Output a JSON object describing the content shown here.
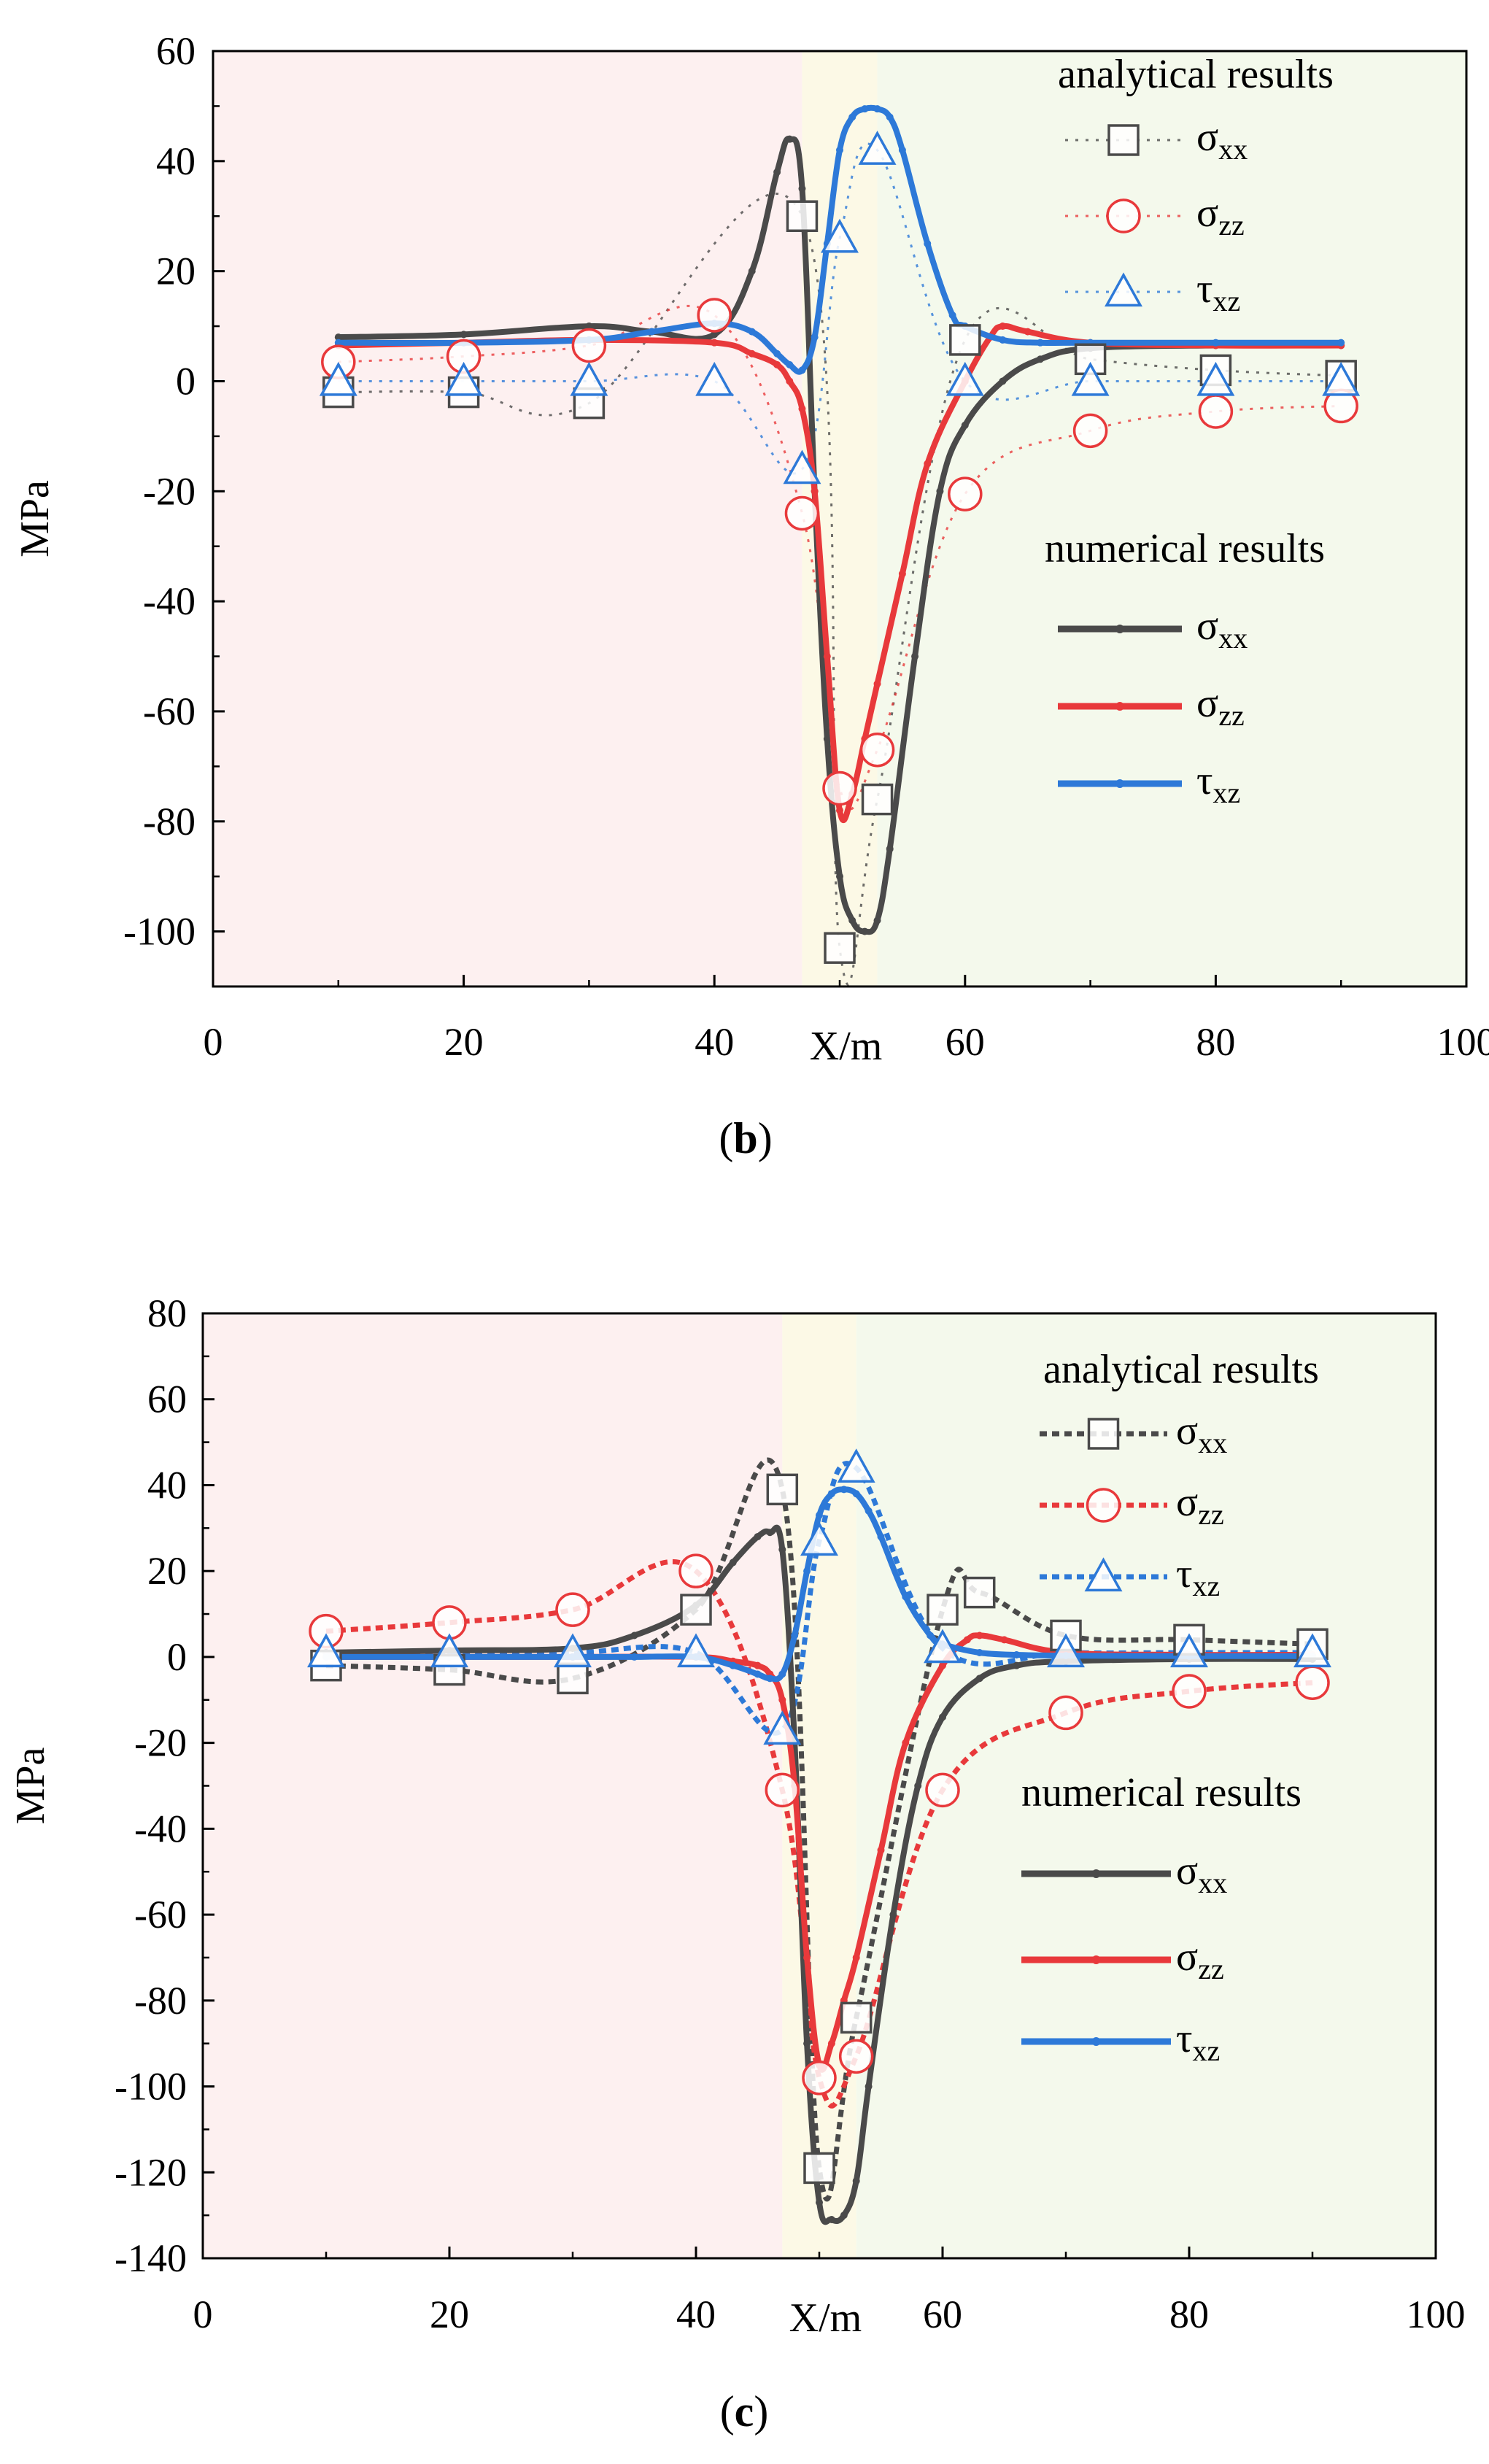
{
  "colors": {
    "sxx": "#4a4a4a",
    "szz": "#e8393b",
    "txz": "#2d79d8",
    "zone_left": "#fdf0f0",
    "zone_mid": "#fcf9e6",
    "zone_right": "#f4f9ec"
  },
  "chart_data": [
    {
      "type": "line",
      "panel_label": "(b)",
      "panel_letter": "b",
      "xlabel": "X/m",
      "ylabel": "MPa",
      "xlim": [
        0,
        100
      ],
      "ylim": [
        -110,
        60
      ],
      "xticks": [
        0,
        20,
        40,
        60,
        80,
        100
      ],
      "xtick_labels": [
        "0",
        "20",
        "40",
        "60",
        "80",
        "100"
      ],
      "yticks": [
        60,
        40,
        20,
        0,
        -20,
        -40,
        -60,
        -80,
        -100
      ],
      "ytick_labels": [
        "60",
        "40",
        "20",
        "0",
        "-20",
        "-40",
        "-60",
        "-80",
        "-100"
      ],
      "zones": [
        {
          "from": 0,
          "to": 47,
          "color_key": "zone_left"
        },
        {
          "from": 47,
          "to": 53,
          "color_key": "zone_mid"
        },
        {
          "from": 53,
          "to": 100,
          "color_key": "zone_right"
        }
      ],
      "legend": {
        "analytical_title": "analytical results",
        "numerical_title": "numerical results",
        "placement": "right"
      },
      "analytical": [
        {
          "name": "σxx",
          "base": "σ",
          "sub": "xx",
          "marker": "square",
          "color_key": "sxx",
          "x": [
            10,
            20,
            30,
            47,
            50,
            53,
            60,
            70,
            80,
            90
          ],
          "y": [
            -2,
            -2,
            -4,
            30,
            -103,
            -76,
            7.5,
            4,
            2,
            1
          ]
        },
        {
          "name": "σzz",
          "base": "σ",
          "sub": "zz",
          "marker": "circle",
          "color_key": "szz",
          "x": [
            10,
            20,
            30,
            40,
            47,
            50,
            53,
            60,
            70,
            80,
            90
          ],
          "y": [
            3.5,
            4.5,
            6.5,
            12,
            -24,
            -74,
            -67,
            -20.5,
            -9,
            -5.5,
            -4.5
          ]
        },
        {
          "name": "τxz",
          "base": "τ",
          "sub": "xz",
          "marker": "triangle",
          "color_key": "txz",
          "x": [
            10,
            20,
            30,
            40,
            47,
            50,
            53,
            60,
            70,
            80,
            90
          ],
          "y": [
            0,
            0,
            0,
            0,
            -16,
            26,
            42,
            0,
            0,
            0,
            0
          ]
        }
      ],
      "numerical": [
        {
          "name": "σxx",
          "base": "σ",
          "sub": "xx",
          "color_key": "sxx",
          "x": [
            10,
            20,
            30,
            35,
            40,
            43,
            45,
            46,
            47,
            48,
            49,
            50,
            51,
            52,
            53,
            54,
            56,
            58,
            60,
            63,
            66,
            70,
            80,
            90
          ],
          "y": [
            8,
            8.5,
            10,
            9,
            8.5,
            20,
            38,
            44,
            35,
            -20,
            -65,
            -90,
            -98,
            -100,
            -98,
            -85,
            -50,
            -20,
            -8,
            0,
            4,
            6,
            6.5,
            6.5
          ]
        },
        {
          "name": "σzz",
          "base": "σ",
          "sub": "zz",
          "color_key": "szz",
          "x": [
            10,
            20,
            30,
            40,
            43,
            45,
            46,
            47,
            48,
            49,
            50,
            51,
            52,
            53,
            55,
            57,
            60,
            62,
            63,
            65,
            70,
            80,
            90
          ],
          "y": [
            6.5,
            7,
            7.5,
            7,
            5,
            3,
            0,
            -5,
            -20,
            -50,
            -78,
            -75,
            -65,
            -55,
            -35,
            -15,
            0,
            8,
            10,
            9,
            7,
            6.5,
            6.5
          ]
        },
        {
          "name": "τxz",
          "base": "τ",
          "sub": "xz",
          "color_key": "txz",
          "x": [
            10,
            20,
            30,
            35,
            40,
            43,
            45,
            46,
            47,
            48,
            49,
            50,
            51,
            52,
            53,
            54,
            55,
            57,
            59,
            60,
            63,
            66,
            70,
            80,
            90
          ],
          "y": [
            7,
            7,
            7.5,
            9,
            10.5,
            9,
            5,
            3,
            2,
            8,
            25,
            42,
            48,
            49.5,
            49.5,
            48,
            42,
            25,
            12,
            10,
            7.5,
            7,
            7,
            7,
            7
          ]
        }
      ]
    },
    {
      "type": "line",
      "panel_label": "(c)",
      "panel_letter": "c",
      "xlabel": "X/m",
      "ylabel": "MPa",
      "xlim": [
        0,
        100
      ],
      "ylim": [
        -140,
        80
      ],
      "xticks": [
        0,
        20,
        40,
        60,
        80,
        100
      ],
      "xtick_labels": [
        "0",
        "20",
        "40",
        "60",
        "80",
        "100"
      ],
      "yticks": [
        80,
        60,
        40,
        20,
        0,
        -20,
        -40,
        -60,
        -80,
        -100,
        -120,
        -140
      ],
      "ytick_labels": [
        "80",
        "60",
        "40",
        "20",
        "0",
        "-20",
        "-40",
        "-60",
        "-80",
        "-100",
        "-120",
        "-140"
      ],
      "zones": [
        {
          "from": 0,
          "to": 47,
          "color_key": "zone_left"
        },
        {
          "from": 47,
          "to": 53,
          "color_key": "zone_mid"
        },
        {
          "from": 53,
          "to": 100,
          "color_key": "zone_right"
        }
      ],
      "legend": {
        "analytical_title": "analytical results",
        "numerical_title": "numerical results",
        "placement": "right"
      },
      "analytical": [
        {
          "name": "σxx",
          "base": "σ",
          "sub": "xx",
          "marker": "square",
          "color_key": "sxx",
          "x": [
            10,
            20,
            30,
            40,
            47,
            50,
            53,
            60,
            63,
            70,
            80,
            90
          ],
          "y": [
            -2,
            -3,
            -5,
            11,
            39,
            -119,
            -84,
            11,
            15,
            5,
            4,
            3
          ]
        },
        {
          "name": "σzz",
          "base": "σ",
          "sub": "zz",
          "marker": "circle",
          "color_key": "szz",
          "x": [
            10,
            20,
            30,
            40,
            47,
            50,
            53,
            60,
            70,
            80,
            90
          ],
          "y": [
            6,
            8,
            11,
            20,
            -31,
            -98,
            -93,
            -31,
            -13,
            -8,
            -6
          ]
        },
        {
          "name": "τxz",
          "base": "τ",
          "sub": "xz",
          "marker": "triangle",
          "color_key": "txz",
          "x": [
            10,
            20,
            30,
            40,
            47,
            50,
            53,
            60,
            70,
            80,
            90
          ],
          "y": [
            1,
            1,
            1,
            1,
            -17,
            27,
            44,
            2,
            1,
            1,
            1
          ]
        }
      ],
      "numerical": [
        {
          "name": "σxx",
          "base": "σ",
          "sub": "xx",
          "color_key": "sxx",
          "x": [
            10,
            20,
            30,
            35,
            40,
            43,
            45,
            46,
            47,
            48,
            49,
            50,
            51,
            52,
            53,
            54,
            56,
            58,
            60,
            63,
            66,
            70,
            80,
            90
          ],
          "y": [
            1,
            1.5,
            2,
            5,
            12,
            22,
            28,
            29,
            25,
            -20,
            -90,
            -127,
            -131,
            -130,
            -122,
            -100,
            -60,
            -30,
            -14,
            -5,
            -2,
            -1,
            -0.5,
            -0.5
          ]
        },
        {
          "name": "σzz",
          "base": "σ",
          "sub": "zz",
          "color_key": "szz",
          "x": [
            10,
            20,
            30,
            40,
            43,
            45,
            46,
            47,
            48,
            49,
            50,
            51,
            52,
            53,
            55,
            57,
            60,
            62,
            63,
            65,
            70,
            80,
            90
          ],
          "y": [
            0,
            0,
            0,
            0,
            -1,
            -2,
            -4,
            -10,
            -30,
            -70,
            -95,
            -90,
            -80,
            -70,
            -45,
            -20,
            -2,
            4,
            5,
            4,
            1,
            0.5,
            0.5
          ]
        },
        {
          "name": "τxz",
          "base": "τ",
          "sub": "xz",
          "color_key": "txz",
          "x": [
            10,
            20,
            30,
            35,
            40,
            43,
            45,
            46,
            47,
            48,
            49,
            50,
            51,
            52,
            53,
            54,
            55,
            57,
            59,
            60,
            63,
            66,
            70,
            80,
            90
          ],
          "y": [
            0,
            0,
            0,
            0,
            0,
            -2,
            -4,
            -5,
            -4,
            5,
            20,
            33,
            38,
            39,
            38,
            34,
            28,
            14,
            5,
            3,
            1,
            0.5,
            0.3,
            0.2,
            0.2
          ]
        }
      ]
    }
  ]
}
